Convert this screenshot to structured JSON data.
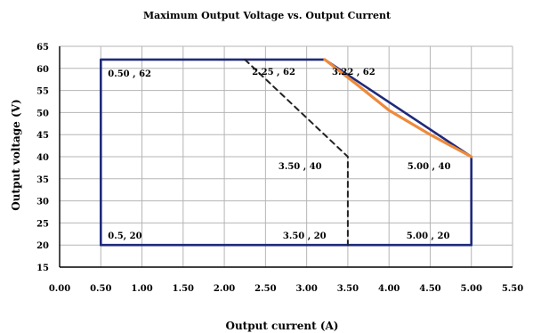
{
  "chart_data": {
    "type": "line",
    "title": "Maximum Output Voltage vs. Output Current",
    "xlabel": "Output current (A)",
    "ylabel": "Output voltage (V)",
    "xlim": [
      0,
      5.5
    ],
    "ylim": [
      15,
      65
    ],
    "x_ticks": [
      0,
      0.5,
      1,
      1.5,
      2,
      2.5,
      3,
      3.5,
      4,
      4.5,
      5,
      5.5
    ],
    "x_tick_labels": [
      "0.00",
      "0.50",
      "1.00",
      "1.50",
      "2.00",
      "2.50",
      "3.00",
      "3.50",
      "4.00",
      "4.50",
      "5.00",
      "5.50"
    ],
    "y_ticks": [
      15,
      20,
      25,
      30,
      35,
      40,
      45,
      50,
      55,
      60,
      65
    ],
    "y_tick_labels": [
      "15",
      "20",
      "25",
      "30",
      "35",
      "40",
      "45",
      "50",
      "55",
      "60",
      "65"
    ],
    "grid": true,
    "series": [
      {
        "style": "solid",
        "color": "#1f2a7a",
        "points": [
          [
            0.5,
            20
          ],
          [
            0.5,
            62
          ],
          [
            3.22,
            62
          ],
          [
            5.0,
            40
          ],
          [
            5.0,
            20
          ],
          [
            0.5,
            20
          ]
        ]
      },
      {
        "style": "dashed",
        "color": "#222222",
        "points": [
          [
            2.25,
            62
          ],
          [
            3.5,
            40
          ],
          [
            3.5,
            20
          ]
        ]
      },
      {
        "style": "solid",
        "color": "#ee8a3c",
        "points": [
          [
            3.22,
            62
          ],
          [
            3.6,
            56.5
          ],
          [
            4.0,
            50.5
          ],
          [
            4.5,
            45
          ],
          [
            5.0,
            40
          ]
        ]
      }
    ],
    "annotations": [
      {
        "text": "0.50 , 62",
        "x": 0.5,
        "y": 62
      },
      {
        "text": "2.25 , 62",
        "x": 2.25,
        "y": 62
      },
      {
        "text": "3.22 , 62",
        "x": 3.22,
        "y": 62
      },
      {
        "text": "3.50 , 40",
        "x": 3.5,
        "y": 40
      },
      {
        "text": "5.00 , 40",
        "x": 5.0,
        "y": 40
      },
      {
        "text": "0.5, 20",
        "x": 0.5,
        "y": 20
      },
      {
        "text": "3.50 , 20",
        "x": 3.5,
        "y": 20
      },
      {
        "text": "5.00 , 20",
        "x": 5.0,
        "y": 20
      }
    ]
  }
}
